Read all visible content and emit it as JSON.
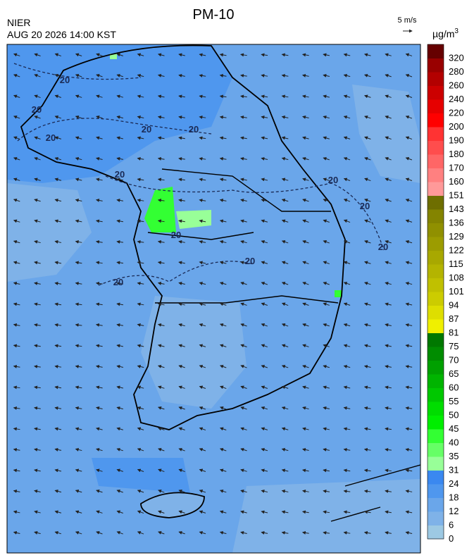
{
  "header": {
    "title": "PM-10",
    "agency": "NIER",
    "timestamp": "AUG 20 2026 14:00 KST",
    "vector_scale": "5 m/s"
  },
  "colorbar": {
    "unit": "µg/m",
    "unit_sup": "3",
    "labels": [
      0,
      6,
      12,
      18,
      24,
      31,
      35,
      40,
      45,
      50,
      55,
      60,
      65,
      70,
      75,
      81,
      87,
      94,
      101,
      108,
      115,
      122,
      129,
      136,
      143,
      151,
      160,
      170,
      180,
      190,
      200,
      220,
      240,
      260,
      280,
      320
    ],
    "colors": [
      "#9dc9e3",
      "#7fb2e8",
      "#6aa6ea",
      "#4f97ee",
      "#3a88f0",
      "#98ff98",
      "#66ff66",
      "#33ff33",
      "#00ee00",
      "#00dd00",
      "#00c800",
      "#00b400",
      "#00a000",
      "#008c00",
      "#007800",
      "#f0f000",
      "#dede00",
      "#cccc00",
      "#c0c000",
      "#b4b400",
      "#a8a800",
      "#9c9c00",
      "#909000",
      "#848400",
      "#6e6e00",
      "#ff9999",
      "#ff8080",
      "#ff6666",
      "#ff4d4d",
      "#ff3333",
      "#ff0000",
      "#e60000",
      "#cc0000",
      "#b30000",
      "#990000",
      "#660000"
    ]
  },
  "map": {
    "contour_labels": [
      "20",
      "20",
      "20",
      "20",
      "20",
      "20",
      "20",
      "20",
      "20",
      "20",
      "20",
      "20"
    ]
  }
}
